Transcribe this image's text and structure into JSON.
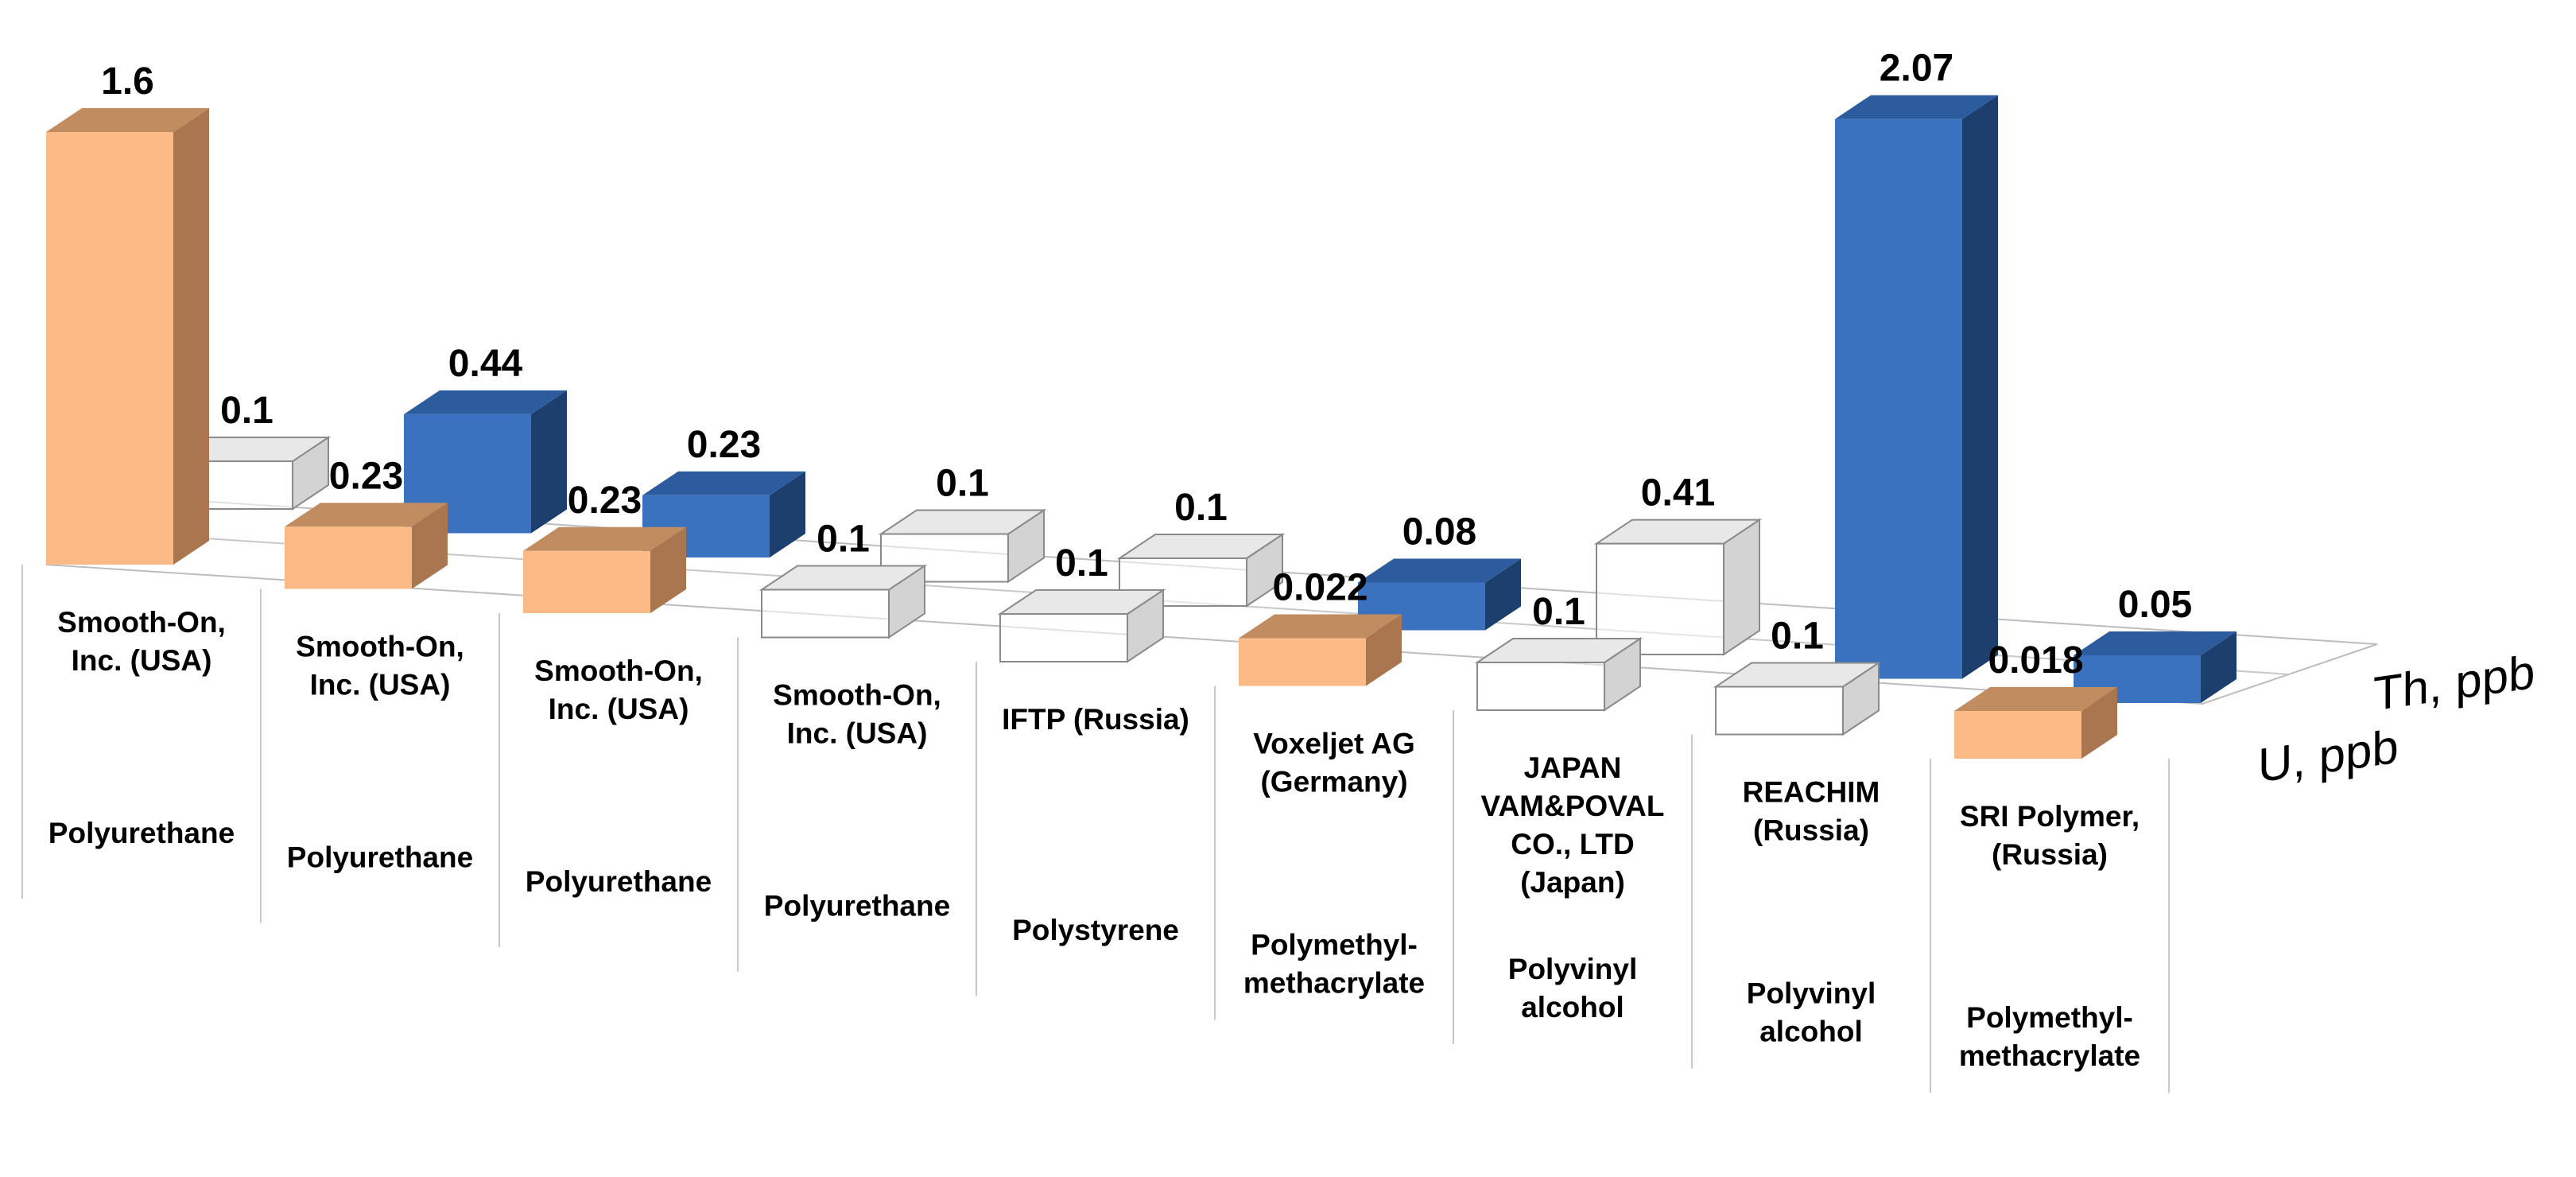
{
  "chart_data": {
    "type": "bar",
    "subtype": "3d-column",
    "title": "",
    "categories": [
      {
        "manufacturer": [
          "Smooth-On,",
          "Inc. (USA)"
        ],
        "material": [
          "Polyurethane"
        ]
      },
      {
        "manufacturer": [
          "Smooth-On,",
          "Inc. (USA)"
        ],
        "material": [
          "Polyurethane"
        ]
      },
      {
        "manufacturer": [
          "Smooth-On,",
          "Inc. (USA)"
        ],
        "material": [
          "Polyurethane"
        ]
      },
      {
        "manufacturer": [
          "Smooth-On,",
          "Inc. (USA)"
        ],
        "material": [
          "Polyurethane"
        ]
      },
      {
        "manufacturer": [
          "IFTP (Russia)"
        ],
        "material": [
          "Polystyrene"
        ]
      },
      {
        "manufacturer": [
          "Voxeljet AG",
          "(Germany)"
        ],
        "material": [
          "Polymethyl-",
          "methacrylate"
        ]
      },
      {
        "manufacturer": [
          "JAPAN",
          "VAM&POVAL",
          "CO., LTD",
          "(Japan)"
        ],
        "material": [
          "Polyvinyl",
          "alcohol"
        ]
      },
      {
        "manufacturer": [
          "REACHIM",
          "(Russia)"
        ],
        "material": [
          "Polyvinyl",
          "alcohol"
        ]
      },
      {
        "manufacturer": [
          "SRI Polymer,",
          "(Russia)"
        ],
        "material": [
          "Polymethyl-",
          "methacrylate"
        ]
      }
    ],
    "series": [
      {
        "name": "U, ppb",
        "values": [
          1.6,
          0.23,
          0.23,
          0.1,
          0.1,
          0.022,
          0.1,
          0.1,
          0.018
        ],
        "labels": [
          "1.6",
          "0.23",
          "0.23",
          "0.1",
          "0.1",
          "0.022",
          "0.1",
          "0.1",
          "0.018"
        ],
        "upper_limit": [
          false,
          false,
          false,
          true,
          true,
          false,
          true,
          true,
          false
        ]
      },
      {
        "name": "Th, ppb",
        "values": [
          0.1,
          0.44,
          0.23,
          0.1,
          0.1,
          0.08,
          0.41,
          2.07,
          0.05
        ],
        "labels": [
          "0.1",
          "0.44",
          "0.23",
          "0.1",
          "0.1",
          "0.08",
          "0.41",
          "2.07",
          "0.05"
        ],
        "upper_limit": [
          true,
          false,
          false,
          true,
          true,
          false,
          true,
          false,
          false
        ]
      }
    ],
    "xlabel": "",
    "ylabel": "",
    "grid": false,
    "legend": "none",
    "colors": {
      "u_front": "#FBBA86",
      "u_side": "#A97650",
      "u_top": "#C28C61",
      "th_front": "#3A72C0",
      "th_side": "#1D3F6E",
      "th_top": "#2D5C9E",
      "hollow_edge": "#8A8A8A",
      "hollow_side": "#D3D3D3",
      "hollow_top": "#E8E8E8"
    }
  }
}
